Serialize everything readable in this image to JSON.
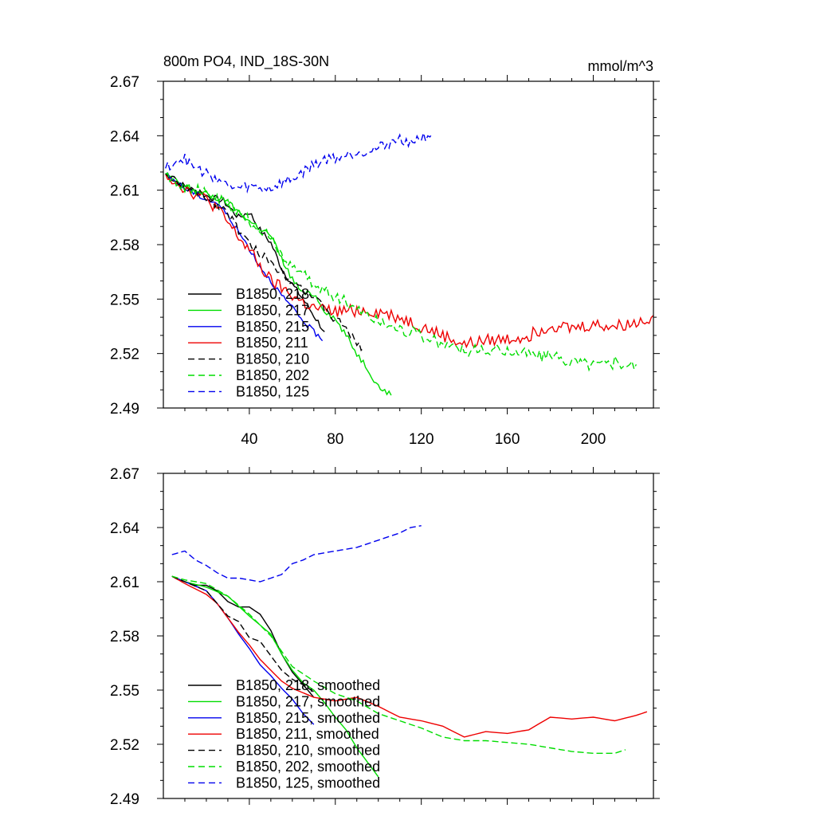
{
  "chart_data": [
    {
      "type": "line",
      "title_left": "800m PO4, IND_18S-30N",
      "title_right": "mmol/m^3",
      "xlim": [
        0,
        228
      ],
      "ylim": [
        2.49,
        2.67
      ],
      "xticks": [
        40,
        80,
        120,
        160,
        200
      ],
      "xtick_labels": [
        "40",
        "80",
        "120",
        "160",
        "200"
      ],
      "yticks": [
        2.49,
        2.52,
        2.55,
        2.58,
        2.61,
        2.64,
        2.67
      ],
      "ytick_labels": [
        "2.49",
        "2.52",
        "2.55",
        "2.58",
        "2.61",
        "2.64",
        "2.67"
      ],
      "series": [
        {
          "name": "B1850, 218",
          "color": "#000000",
          "dash": "solid",
          "noise": 0.0018,
          "x": [
            1,
            10,
            20,
            28,
            35,
            40,
            45,
            50,
            55,
            60,
            65,
            70,
            75
          ],
          "y": [
            2.619,
            2.612,
            2.607,
            2.604,
            2.595,
            2.598,
            2.588,
            2.581,
            2.567,
            2.558,
            2.55,
            2.541,
            2.532
          ]
        },
        {
          "name": "B1850, 217",
          "color": "#00dd00",
          "dash": "solid",
          "noise": 0.0018,
          "x": [
            1,
            10,
            20,
            30,
            40,
            50,
            55,
            60,
            65,
            70,
            75,
            80,
            85,
            90,
            95,
            100,
            106
          ],
          "y": [
            2.619,
            2.612,
            2.608,
            2.603,
            2.593,
            2.585,
            2.572,
            2.561,
            2.553,
            2.553,
            2.544,
            2.539,
            2.53,
            2.52,
            2.512,
            2.502,
            2.497
          ]
        },
        {
          "name": "B1850, 215",
          "color": "#0000ee",
          "dash": "solid",
          "noise": 0.0015,
          "x": [
            1,
            10,
            20,
            25,
            30,
            35,
            40,
            45,
            50,
            55,
            60,
            65,
            70,
            74
          ],
          "y": [
            2.619,
            2.611,
            2.605,
            2.603,
            2.596,
            2.587,
            2.578,
            2.568,
            2.56,
            2.552,
            2.545,
            2.538,
            2.532,
            2.527
          ]
        },
        {
          "name": "B1850, 211",
          "color": "#ee0000",
          "dash": "solid",
          "noise": 0.0035,
          "x": [
            1,
            10,
            20,
            25,
            30,
            35,
            40,
            45,
            50,
            55,
            60,
            65,
            70,
            80,
            90,
            100,
            110,
            120,
            130,
            140,
            150,
            160,
            170,
            180,
            190,
            200,
            210,
            220,
            228
          ],
          "y": [
            2.619,
            2.611,
            2.605,
            2.6,
            2.592,
            2.584,
            2.577,
            2.568,
            2.56,
            2.556,
            2.552,
            2.548,
            2.545,
            2.543,
            2.544,
            2.543,
            2.54,
            2.535,
            2.53,
            2.525,
            2.527,
            2.528,
            2.53,
            2.536,
            2.534,
            2.536,
            2.535,
            2.537,
            2.541
          ]
        },
        {
          "name": "B1850, 210",
          "color": "#000000",
          "dash": "dashed",
          "noise": 0.0025,
          "x": [
            1,
            10,
            20,
            30,
            35,
            40,
            45,
            50,
            55,
            60,
            65,
            70,
            75,
            80,
            85,
            90,
            93
          ],
          "y": [
            2.619,
            2.611,
            2.606,
            2.598,
            2.588,
            2.58,
            2.575,
            2.57,
            2.565,
            2.56,
            2.556,
            2.55,
            2.545,
            2.538,
            2.535,
            2.524,
            2.523
          ]
        },
        {
          "name": "B1850, 202",
          "color": "#00dd00",
          "dash": "dashed",
          "noise": 0.0035,
          "x": [
            1,
            10,
            20,
            30,
            40,
            50,
            60,
            70,
            80,
            90,
            100,
            110,
            120,
            130,
            140,
            150,
            160,
            170,
            180,
            190,
            200,
            210,
            220
          ],
          "y": [
            2.619,
            2.612,
            2.608,
            2.602,
            2.593,
            2.583,
            2.568,
            2.558,
            2.552,
            2.545,
            2.538,
            2.534,
            2.53,
            2.525,
            2.522,
            2.521,
            2.522,
            2.52,
            2.518,
            2.516,
            2.514,
            2.515,
            2.514
          ]
        },
        {
          "name": "B1850, 125",
          "color": "#0000ee",
          "dash": "dashed",
          "noise": 0.003,
          "x": [
            1,
            5,
            10,
            15,
            20,
            25,
            30,
            35,
            40,
            45,
            50,
            55,
            60,
            65,
            70,
            75,
            80,
            85,
            90,
            95,
            100,
            105,
            110,
            115,
            120,
            125
          ],
          "y": [
            2.622,
            2.626,
            2.627,
            2.622,
            2.619,
            2.617,
            2.612,
            2.611,
            2.612,
            2.611,
            2.611,
            2.614,
            2.616,
            2.62,
            2.624,
            2.627,
            2.628,
            2.629,
            2.631,
            2.632,
            2.633,
            2.636,
            2.638,
            2.637,
            2.639,
            2.641
          ]
        }
      ]
    },
    {
      "type": "line",
      "title_left": "",
      "title_right": "",
      "xlim": [
        0,
        228
      ],
      "ylim": [
        2.49,
        2.67
      ],
      "xticks": [
        40,
        80,
        120,
        160,
        200
      ],
      "xtick_labels": [],
      "yticks": [
        2.49,
        2.52,
        2.55,
        2.58,
        2.61,
        2.64,
        2.67
      ],
      "ytick_labels": [
        "2.49",
        "2.52",
        "2.55",
        "2.58",
        "2.61",
        "2.64",
        "2.67"
      ],
      "series": [
        {
          "name": "B1850, 218, smoothed",
          "color": "#000000",
          "dash": "solid",
          "noise": 0,
          "x": [
            4,
            10,
            15,
            20,
            25,
            30,
            35,
            40,
            45,
            50,
            55,
            60,
            65,
            70
          ],
          "y": [
            2.613,
            2.61,
            2.608,
            2.608,
            2.605,
            2.599,
            2.596,
            2.596,
            2.592,
            2.583,
            2.57,
            2.56,
            2.553,
            2.546
          ]
        },
        {
          "name": "B1850, 217, smoothed",
          "color": "#00dd00",
          "dash": "solid",
          "noise": 0,
          "x": [
            4,
            10,
            20,
            30,
            40,
            50,
            55,
            60,
            65,
            70,
            75,
            80,
            85,
            90,
            95,
            100
          ],
          "y": [
            2.613,
            2.61,
            2.607,
            2.602,
            2.591,
            2.581,
            2.57,
            2.561,
            2.554,
            2.55,
            2.543,
            2.535,
            2.528,
            2.518,
            2.51,
            2.502
          ]
        },
        {
          "name": "B1850, 215, smoothed",
          "color": "#0000ee",
          "dash": "solid",
          "noise": 0,
          "x": [
            4,
            10,
            20,
            25,
            30,
            35,
            40,
            45,
            50,
            55,
            60,
            65,
            70
          ],
          "y": [
            2.613,
            2.61,
            2.605,
            2.598,
            2.59,
            2.581,
            2.573,
            2.564,
            2.558,
            2.551,
            2.545,
            2.537,
            2.531
          ]
        },
        {
          "name": "B1850, 211, smoothed",
          "color": "#ee0000",
          "dash": "solid",
          "noise": 0,
          "x": [
            4,
            10,
            20,
            25,
            30,
            35,
            40,
            45,
            50,
            55,
            60,
            70,
            80,
            90,
            100,
            110,
            120,
            130,
            140,
            150,
            160,
            170,
            180,
            190,
            200,
            210,
            220,
            225
          ],
          "y": [
            2.613,
            2.609,
            2.603,
            2.598,
            2.59,
            2.582,
            2.575,
            2.567,
            2.561,
            2.555,
            2.551,
            2.546,
            2.544,
            2.546,
            2.541,
            2.535,
            2.533,
            2.53,
            2.524,
            2.527,
            2.526,
            2.528,
            2.535,
            2.534,
            2.535,
            2.533,
            2.536,
            2.538
          ]
        },
        {
          "name": "B1850, 210, smoothed",
          "color": "#000000",
          "dash": "dashed",
          "noise": 0,
          "x": [
            4,
            10,
            20,
            30,
            35,
            40,
            45,
            50,
            55,
            60,
            65,
            70
          ],
          "y": [
            2.613,
            2.61,
            2.605,
            2.591,
            2.588,
            2.579,
            2.577,
            2.569,
            2.561,
            2.556,
            2.553,
            2.549
          ]
        },
        {
          "name": "B1850, 202, smoothed",
          "color": "#00dd00",
          "dash": "dashed",
          "noise": 0,
          "x": [
            4,
            10,
            20,
            30,
            40,
            50,
            60,
            70,
            80,
            90,
            100,
            110,
            120,
            130,
            140,
            150,
            160,
            170,
            180,
            190,
            200,
            210,
            215
          ],
          "y": [
            2.613,
            2.611,
            2.609,
            2.602,
            2.592,
            2.58,
            2.563,
            2.555,
            2.548,
            2.544,
            2.537,
            2.533,
            2.529,
            2.524,
            2.522,
            2.522,
            2.521,
            2.52,
            2.518,
            2.516,
            2.515,
            2.515,
            2.517
          ]
        },
        {
          "name": "B1850, 125, smoothed",
          "color": "#0000ee",
          "dash": "dashed",
          "noise": 0,
          "x": [
            4,
            10,
            15,
            20,
            25,
            30,
            35,
            40,
            45,
            50,
            55,
            60,
            65,
            70,
            80,
            90,
            100,
            110,
            115,
            120
          ],
          "y": [
            2.625,
            2.627,
            2.622,
            2.619,
            2.615,
            2.612,
            2.612,
            2.611,
            2.61,
            2.612,
            2.614,
            2.62,
            2.622,
            2.625,
            2.627,
            2.629,
            2.633,
            2.637,
            2.64,
            2.641
          ]
        }
      ]
    }
  ]
}
